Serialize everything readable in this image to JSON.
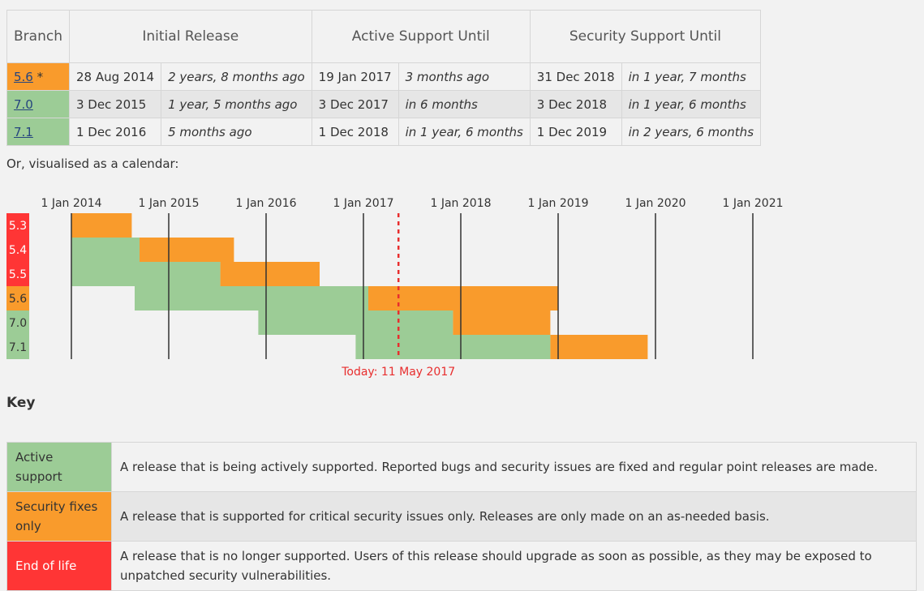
{
  "table": {
    "headers": {
      "branch": "Branch",
      "initial": "Initial Release",
      "active": "Active Support Until",
      "security": "Security Support Until"
    },
    "rows": [
      {
        "branch": "5.6",
        "marker": "*",
        "status": "security",
        "initial_date": "28 Aug 2014",
        "initial_rel": "2 years, 8 months ago",
        "active_date": "19 Jan 2017",
        "active_rel": "3 months ago",
        "security_date": "31 Dec 2018",
        "security_rel": "in 1 year, 7 months"
      },
      {
        "branch": "7.0",
        "marker": "",
        "status": "active",
        "initial_date": "3 Dec 2015",
        "initial_rel": "1 year, 5 months ago",
        "active_date": "3 Dec 2017",
        "active_rel": "in 6 months",
        "security_date": "3 Dec 2018",
        "security_rel": "in 1 year, 6 months"
      },
      {
        "branch": "7.1",
        "marker": "",
        "status": "active",
        "initial_date": "1 Dec 2016",
        "initial_rel": "5 months ago",
        "active_date": "1 Dec 2018",
        "active_rel": "in 1 year, 6 months",
        "security_date": "1 Dec 2019",
        "security_rel": "in 2 years, 6 months"
      }
    ]
  },
  "intro": "Or, visualised as a calendar:",
  "calendar": {
    "year_labels": [
      "1 Jan 2014",
      "1 Jan 2015",
      "1 Jan 2016",
      "1 Jan 2017",
      "1 Jan 2018",
      "1 Jan 2019",
      "1 Jan 2020",
      "1 Jan 2021"
    ],
    "years": [
      2014,
      2015,
      2016,
      2017,
      2018,
      2019,
      2020,
      2021
    ],
    "today": 2017.36,
    "today_label": "Today: 11 May 2017",
    "branches": [
      {
        "name": "5.3",
        "status": "eol",
        "release": 2014.0,
        "active_end": 2014.0,
        "security_end": 2014.62
      },
      {
        "name": "5.4",
        "status": "eol",
        "release": 2014.0,
        "active_end": 2014.7,
        "security_end": 2015.67
      },
      {
        "name": "5.5",
        "status": "eol",
        "release": 2014.0,
        "active_end": 2015.53,
        "security_end": 2016.55
      },
      {
        "name": "5.6",
        "status": "security",
        "release": 2014.65,
        "active_end": 2017.05,
        "security_end": 2019.0
      },
      {
        "name": "7.0",
        "status": "active",
        "release": 2015.92,
        "active_end": 2017.92,
        "security_end": 2018.92
      },
      {
        "name": "7.1",
        "status": "active",
        "release": 2016.92,
        "active_end": 2018.92,
        "security_end": 2019.92
      }
    ]
  },
  "key": {
    "heading": "Key",
    "items": [
      {
        "status": "active",
        "label": "Active support",
        "desc": "A release that is being actively supported. Reported bugs and security issues are fixed and regular point releases are made."
      },
      {
        "status": "security",
        "label": "Security fixes only",
        "desc": "A release that is supported for critical security issues only. Releases are only made on an as-needed basis."
      },
      {
        "status": "eol",
        "label": "End of life",
        "desc": "A release that is no longer supported. Users of this release should upgrade as soon as possible, as they may be exposed to unpatched security vulnerabilities."
      }
    ]
  },
  "colors": {
    "active": "#9ccc96",
    "security": "#f99b2c",
    "eol": "#ff3535",
    "today": "#e82e2e",
    "link": "#26457e"
  }
}
